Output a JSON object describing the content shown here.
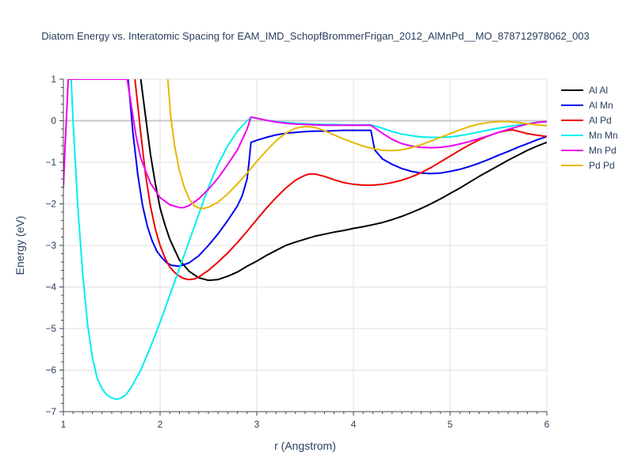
{
  "chart_data": {
    "type": "line",
    "title": "Diatom Energy vs. Interatomic Spacing for EAM_IMD_SchopfBrommerFrigan_2012_AlMnPd__MO_878712978062_003",
    "xlabel": "r (Angstrom)",
    "ylabel": "Energy (eV)",
    "xlim": [
      1,
      6
    ],
    "ylim": [
      -7,
      1
    ],
    "x_ticks": [
      1,
      2,
      3,
      4,
      5,
      6
    ],
    "y_ticks": [
      1,
      0,
      -1,
      -2,
      -3,
      -4,
      -5,
      -6,
      -7
    ],
    "grid": true,
    "legend_position": "top-right",
    "series": [
      {
        "name": "Al Al",
        "color": "#000000",
        "points": [
          [
            1.8,
            1.0
          ],
          [
            1.85,
            0.1
          ],
          [
            1.9,
            -0.8
          ],
          [
            1.95,
            -1.5
          ],
          [
            2.0,
            -2.1
          ],
          [
            2.05,
            -2.5
          ],
          [
            2.1,
            -2.85
          ],
          [
            2.15,
            -3.1
          ],
          [
            2.2,
            -3.35
          ],
          [
            2.3,
            -3.62
          ],
          [
            2.4,
            -3.78
          ],
          [
            2.5,
            -3.84
          ],
          [
            2.6,
            -3.82
          ],
          [
            2.7,
            -3.74
          ],
          [
            2.8,
            -3.64
          ],
          [
            2.9,
            -3.5
          ],
          [
            3.0,
            -3.38
          ],
          [
            3.1,
            -3.24
          ],
          [
            3.2,
            -3.12
          ],
          [
            3.3,
            -3.0
          ],
          [
            3.4,
            -2.92
          ],
          [
            3.5,
            -2.85
          ],
          [
            3.6,
            -2.78
          ],
          [
            3.7,
            -2.73
          ],
          [
            3.8,
            -2.68
          ],
          [
            3.9,
            -2.64
          ],
          [
            4.0,
            -2.59
          ],
          [
            4.1,
            -2.55
          ],
          [
            4.2,
            -2.5
          ],
          [
            4.3,
            -2.45
          ],
          [
            4.4,
            -2.38
          ],
          [
            4.5,
            -2.3
          ],
          [
            4.6,
            -2.21
          ],
          [
            4.7,
            -2.11
          ],
          [
            4.8,
            -2.0
          ],
          [
            4.9,
            -1.88
          ],
          [
            5.0,
            -1.75
          ],
          [
            5.1,
            -1.62
          ],
          [
            5.2,
            -1.48
          ],
          [
            5.3,
            -1.34
          ],
          [
            5.4,
            -1.21
          ],
          [
            5.5,
            -1.08
          ],
          [
            5.6,
            -0.95
          ],
          [
            5.7,
            -0.83
          ],
          [
            5.8,
            -0.71
          ],
          [
            5.9,
            -0.61
          ],
          [
            6.0,
            -0.52
          ]
        ]
      },
      {
        "name": "Al Mn",
        "color": "#0000ee",
        "points": [
          [
            1.67,
            1.0
          ],
          [
            1.72,
            -0.3
          ],
          [
            1.77,
            -1.3
          ],
          [
            1.82,
            -2.05
          ],
          [
            1.87,
            -2.55
          ],
          [
            1.92,
            -2.9
          ],
          [
            1.97,
            -3.15
          ],
          [
            2.02,
            -3.3
          ],
          [
            2.07,
            -3.42
          ],
          [
            2.12,
            -3.48
          ],
          [
            2.2,
            -3.5
          ],
          [
            2.3,
            -3.42
          ],
          [
            2.4,
            -3.25
          ],
          [
            2.5,
            -3.0
          ],
          [
            2.6,
            -2.72
          ],
          [
            2.7,
            -2.4
          ],
          [
            2.8,
            -2.05
          ],
          [
            2.85,
            -1.8
          ],
          [
            2.9,
            -1.4
          ],
          [
            2.92,
            -1.0
          ],
          [
            2.94,
            -0.52
          ],
          [
            3.0,
            -0.47
          ],
          [
            3.1,
            -0.4
          ],
          [
            3.2,
            -0.34
          ],
          [
            3.3,
            -0.3
          ],
          [
            3.4,
            -0.28
          ],
          [
            3.5,
            -0.26
          ],
          [
            3.6,
            -0.25
          ],
          [
            3.7,
            -0.25
          ],
          [
            3.8,
            -0.24
          ],
          [
            3.9,
            -0.23
          ],
          [
            4.0,
            -0.23
          ],
          [
            4.1,
            -0.23
          ],
          [
            4.18,
            -0.23
          ],
          [
            4.22,
            -0.7
          ],
          [
            4.3,
            -0.92
          ],
          [
            4.4,
            -1.05
          ],
          [
            4.5,
            -1.15
          ],
          [
            4.6,
            -1.22
          ],
          [
            4.7,
            -1.26
          ],
          [
            4.8,
            -1.27
          ],
          [
            4.9,
            -1.26
          ],
          [
            5.0,
            -1.22
          ],
          [
            5.1,
            -1.17
          ],
          [
            5.2,
            -1.1
          ],
          [
            5.3,
            -1.02
          ],
          [
            5.4,
            -0.93
          ],
          [
            5.5,
            -0.83
          ],
          [
            5.6,
            -0.74
          ],
          [
            5.7,
            -0.64
          ],
          [
            5.8,
            -0.55
          ],
          [
            5.9,
            -0.46
          ],
          [
            6.0,
            -0.38
          ]
        ]
      },
      {
        "name": "Al Pd",
        "color": "#ee0000",
        "points": [
          [
            1.74,
            1.0
          ],
          [
            1.8,
            -0.3
          ],
          [
            1.85,
            -1.3
          ],
          [
            1.9,
            -2.05
          ],
          [
            1.95,
            -2.6
          ],
          [
            2.0,
            -3.0
          ],
          [
            2.05,
            -3.3
          ],
          [
            2.1,
            -3.52
          ],
          [
            2.15,
            -3.65
          ],
          [
            2.2,
            -3.74
          ],
          [
            2.25,
            -3.8
          ],
          [
            2.3,
            -3.82
          ],
          [
            2.35,
            -3.81
          ],
          [
            2.4,
            -3.76
          ],
          [
            2.5,
            -3.6
          ],
          [
            2.6,
            -3.4
          ],
          [
            2.7,
            -3.18
          ],
          [
            2.8,
            -2.93
          ],
          [
            2.9,
            -2.66
          ],
          [
            3.0,
            -2.38
          ],
          [
            3.1,
            -2.1
          ],
          [
            3.2,
            -1.85
          ],
          [
            3.3,
            -1.62
          ],
          [
            3.4,
            -1.43
          ],
          [
            3.5,
            -1.31
          ],
          [
            3.55,
            -1.28
          ],
          [
            3.6,
            -1.28
          ],
          [
            3.7,
            -1.34
          ],
          [
            3.8,
            -1.42
          ],
          [
            3.9,
            -1.49
          ],
          [
            4.0,
            -1.53
          ],
          [
            4.1,
            -1.55
          ],
          [
            4.2,
            -1.55
          ],
          [
            4.3,
            -1.53
          ],
          [
            4.4,
            -1.49
          ],
          [
            4.5,
            -1.43
          ],
          [
            4.6,
            -1.35
          ],
          [
            4.7,
            -1.25
          ],
          [
            4.8,
            -1.13
          ],
          [
            4.9,
            -0.99
          ],
          [
            5.0,
            -0.85
          ],
          [
            5.1,
            -0.71
          ],
          [
            5.2,
            -0.58
          ],
          [
            5.3,
            -0.46
          ],
          [
            5.4,
            -0.36
          ],
          [
            5.5,
            -0.28
          ],
          [
            5.6,
            -0.23
          ],
          [
            5.65,
            -0.22
          ],
          [
            5.7,
            -0.25
          ],
          [
            5.8,
            -0.31
          ],
          [
            5.9,
            -0.35
          ],
          [
            6.0,
            -0.38
          ]
        ]
      },
      {
        "name": "Mn Mn",
        "color": "#00eeee",
        "points": [
          [
            1.08,
            1.0
          ],
          [
            1.1,
            0.0
          ],
          [
            1.15,
            -2.1
          ],
          [
            1.2,
            -3.7
          ],
          [
            1.25,
            -4.9
          ],
          [
            1.3,
            -5.7
          ],
          [
            1.35,
            -6.2
          ],
          [
            1.4,
            -6.45
          ],
          [
            1.45,
            -6.6
          ],
          [
            1.5,
            -6.67
          ],
          [
            1.55,
            -6.7
          ],
          [
            1.6,
            -6.67
          ],
          [
            1.65,
            -6.58
          ],
          [
            1.7,
            -6.42
          ],
          [
            1.8,
            -6.0
          ],
          [
            1.9,
            -5.45
          ],
          [
            2.0,
            -4.85
          ],
          [
            2.1,
            -4.2
          ],
          [
            2.2,
            -3.55
          ],
          [
            2.3,
            -2.9
          ],
          [
            2.4,
            -2.25
          ],
          [
            2.5,
            -1.6
          ],
          [
            2.6,
            -1.05
          ],
          [
            2.7,
            -0.6
          ],
          [
            2.8,
            -0.25
          ],
          [
            2.9,
            0.0
          ],
          [
            2.94,
            0.08
          ],
          [
            3.0,
            0.06
          ],
          [
            3.1,
            0.01
          ],
          [
            3.2,
            -0.02
          ],
          [
            3.3,
            -0.04
          ],
          [
            3.4,
            -0.06
          ],
          [
            3.5,
            -0.07
          ],
          [
            3.6,
            -0.08
          ],
          [
            3.7,
            -0.09
          ],
          [
            3.8,
            -0.09
          ],
          [
            3.9,
            -0.1
          ],
          [
            4.0,
            -0.1
          ],
          [
            4.1,
            -0.1
          ],
          [
            4.18,
            -0.1
          ],
          [
            4.3,
            -0.18
          ],
          [
            4.4,
            -0.26
          ],
          [
            4.5,
            -0.32
          ],
          [
            4.6,
            -0.36
          ],
          [
            4.7,
            -0.39
          ],
          [
            4.8,
            -0.4
          ],
          [
            4.9,
            -0.4
          ],
          [
            5.0,
            -0.39
          ],
          [
            5.1,
            -0.36
          ],
          [
            5.2,
            -0.32
          ],
          [
            5.3,
            -0.27
          ],
          [
            5.4,
            -0.22
          ],
          [
            5.5,
            -0.18
          ],
          [
            5.6,
            -0.14
          ],
          [
            5.7,
            -0.1
          ],
          [
            5.8,
            -0.07
          ],
          [
            5.9,
            -0.04
          ],
          [
            6.0,
            -0.02
          ]
        ]
      },
      {
        "name": "Mn Pd",
        "color": "#ee00ee",
        "points": [
          [
            1.0,
            -1.6
          ],
          [
            1.02,
            -0.5
          ],
          [
            1.04,
            0.5
          ],
          [
            1.05,
            1.0
          ],
          [
            1.66,
            1.0
          ],
          [
            1.7,
            0.4
          ],
          [
            1.75,
            -0.35
          ],
          [
            1.8,
            -0.9
          ],
          [
            1.9,
            -1.5
          ],
          [
            2.0,
            -1.85
          ],
          [
            2.1,
            -2.02
          ],
          [
            2.2,
            -2.09
          ],
          [
            2.25,
            -2.09
          ],
          [
            2.3,
            -2.04
          ],
          [
            2.4,
            -1.88
          ],
          [
            2.5,
            -1.65
          ],
          [
            2.6,
            -1.38
          ],
          [
            2.7,
            -1.05
          ],
          [
            2.8,
            -0.7
          ],
          [
            2.9,
            -0.2
          ],
          [
            2.94,
            0.09
          ],
          [
            3.0,
            0.06
          ],
          [
            3.1,
            0.01
          ],
          [
            3.2,
            -0.03
          ],
          [
            3.3,
            -0.06
          ],
          [
            3.4,
            -0.08
          ],
          [
            3.5,
            -0.09
          ],
          [
            3.6,
            -0.1
          ],
          [
            3.7,
            -0.11
          ],
          [
            3.8,
            -0.11
          ],
          [
            3.9,
            -0.11
          ],
          [
            4.0,
            -0.11
          ],
          [
            4.1,
            -0.11
          ],
          [
            4.18,
            -0.11
          ],
          [
            4.3,
            -0.3
          ],
          [
            4.4,
            -0.45
          ],
          [
            4.5,
            -0.55
          ],
          [
            4.6,
            -0.61
          ],
          [
            4.7,
            -0.64
          ],
          [
            4.8,
            -0.65
          ],
          [
            4.9,
            -0.64
          ],
          [
            5.0,
            -0.61
          ],
          [
            5.1,
            -0.56
          ],
          [
            5.2,
            -0.5
          ],
          [
            5.3,
            -0.43
          ],
          [
            5.4,
            -0.36
          ],
          [
            5.5,
            -0.28
          ],
          [
            5.6,
            -0.21
          ],
          [
            5.7,
            -0.14
          ],
          [
            5.8,
            -0.08
          ],
          [
            5.9,
            -0.04
          ],
          [
            6.0,
            -0.02
          ]
        ]
      },
      {
        "name": "Pd Pd",
        "color": "#e6b800",
        "points": [
          [
            2.08,
            1.0
          ],
          [
            2.11,
            0.1
          ],
          [
            2.15,
            -0.6
          ],
          [
            2.2,
            -1.2
          ],
          [
            2.25,
            -1.6
          ],
          [
            2.3,
            -1.88
          ],
          [
            2.35,
            -2.04
          ],
          [
            2.4,
            -2.1
          ],
          [
            2.45,
            -2.11
          ],
          [
            2.5,
            -2.08
          ],
          [
            2.6,
            -1.96
          ],
          [
            2.7,
            -1.76
          ],
          [
            2.8,
            -1.52
          ],
          [
            2.9,
            -1.26
          ],
          [
            3.0,
            -0.98
          ],
          [
            3.1,
            -0.72
          ],
          [
            3.2,
            -0.48
          ],
          [
            3.3,
            -0.3
          ],
          [
            3.4,
            -0.18
          ],
          [
            3.5,
            -0.14
          ],
          [
            3.6,
            -0.16
          ],
          [
            3.7,
            -0.24
          ],
          [
            3.8,
            -0.34
          ],
          [
            3.9,
            -0.44
          ],
          [
            4.0,
            -0.53
          ],
          [
            4.1,
            -0.61
          ],
          [
            4.2,
            -0.67
          ],
          [
            4.3,
            -0.71
          ],
          [
            4.4,
            -0.72
          ],
          [
            4.5,
            -0.7
          ],
          [
            4.6,
            -0.65
          ],
          [
            4.7,
            -0.58
          ],
          [
            4.8,
            -0.49
          ],
          [
            4.9,
            -0.4
          ],
          [
            5.0,
            -0.31
          ],
          [
            5.1,
            -0.22
          ],
          [
            5.2,
            -0.14
          ],
          [
            5.3,
            -0.08
          ],
          [
            5.4,
            -0.04
          ],
          [
            5.5,
            -0.02
          ],
          [
            5.6,
            -0.02
          ],
          [
            5.7,
            -0.04
          ],
          [
            5.8,
            -0.07
          ],
          [
            5.9,
            -0.1
          ],
          [
            6.0,
            -0.12
          ]
        ]
      }
    ]
  }
}
